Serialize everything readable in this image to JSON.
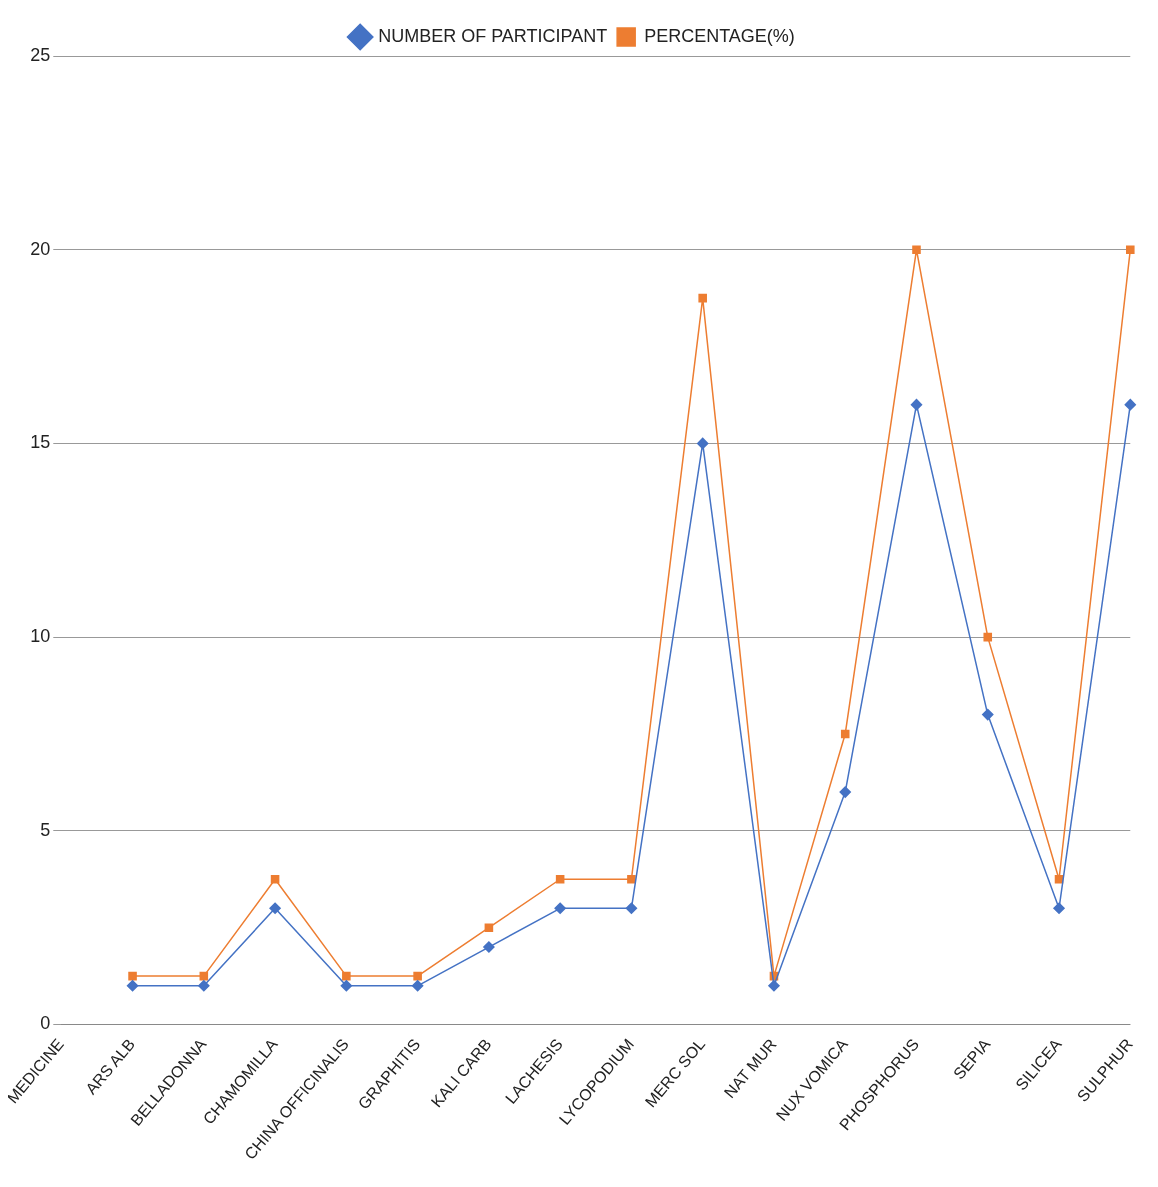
{
  "chart_data": {
    "type": "line",
    "categories": [
      "MEDICINE",
      "ARS ALB",
      "BELLADONNA",
      "CHAMOMILLA",
      "CHINA OFFICINALIS",
      "GRAPHITIS",
      "KALI CARB",
      "LACHESIS",
      "LYCOPODIUM",
      "MERC SOL",
      "NAT MUR",
      "NUX VOMICA",
      "PHOSPHORUS",
      "SEPIA",
      "SILICEA",
      "SULPHUR"
    ],
    "series": [
      {
        "name": "NUMBER OF PARTICIPANT",
        "color": "#4472c4",
        "marker": "diamond",
        "values": [
          null,
          1,
          1,
          3,
          1,
          1,
          2,
          3,
          3,
          15,
          1,
          6,
          16,
          8,
          3,
          16
        ]
      },
      {
        "name": "PERCENTAGE(%)",
        "color": "#ed7d31",
        "marker": "square",
        "values": [
          null,
          1.25,
          1.25,
          3.75,
          1.25,
          1.25,
          2.5,
          3.75,
          3.75,
          18.75,
          1.25,
          7.5,
          20,
          10,
          3.75,
          20
        ]
      }
    ],
    "ylim": [
      0,
      25
    ],
    "yticks": [
      0,
      5,
      10,
      15,
      20,
      25
    ],
    "grid": "y",
    "legend": "top"
  }
}
